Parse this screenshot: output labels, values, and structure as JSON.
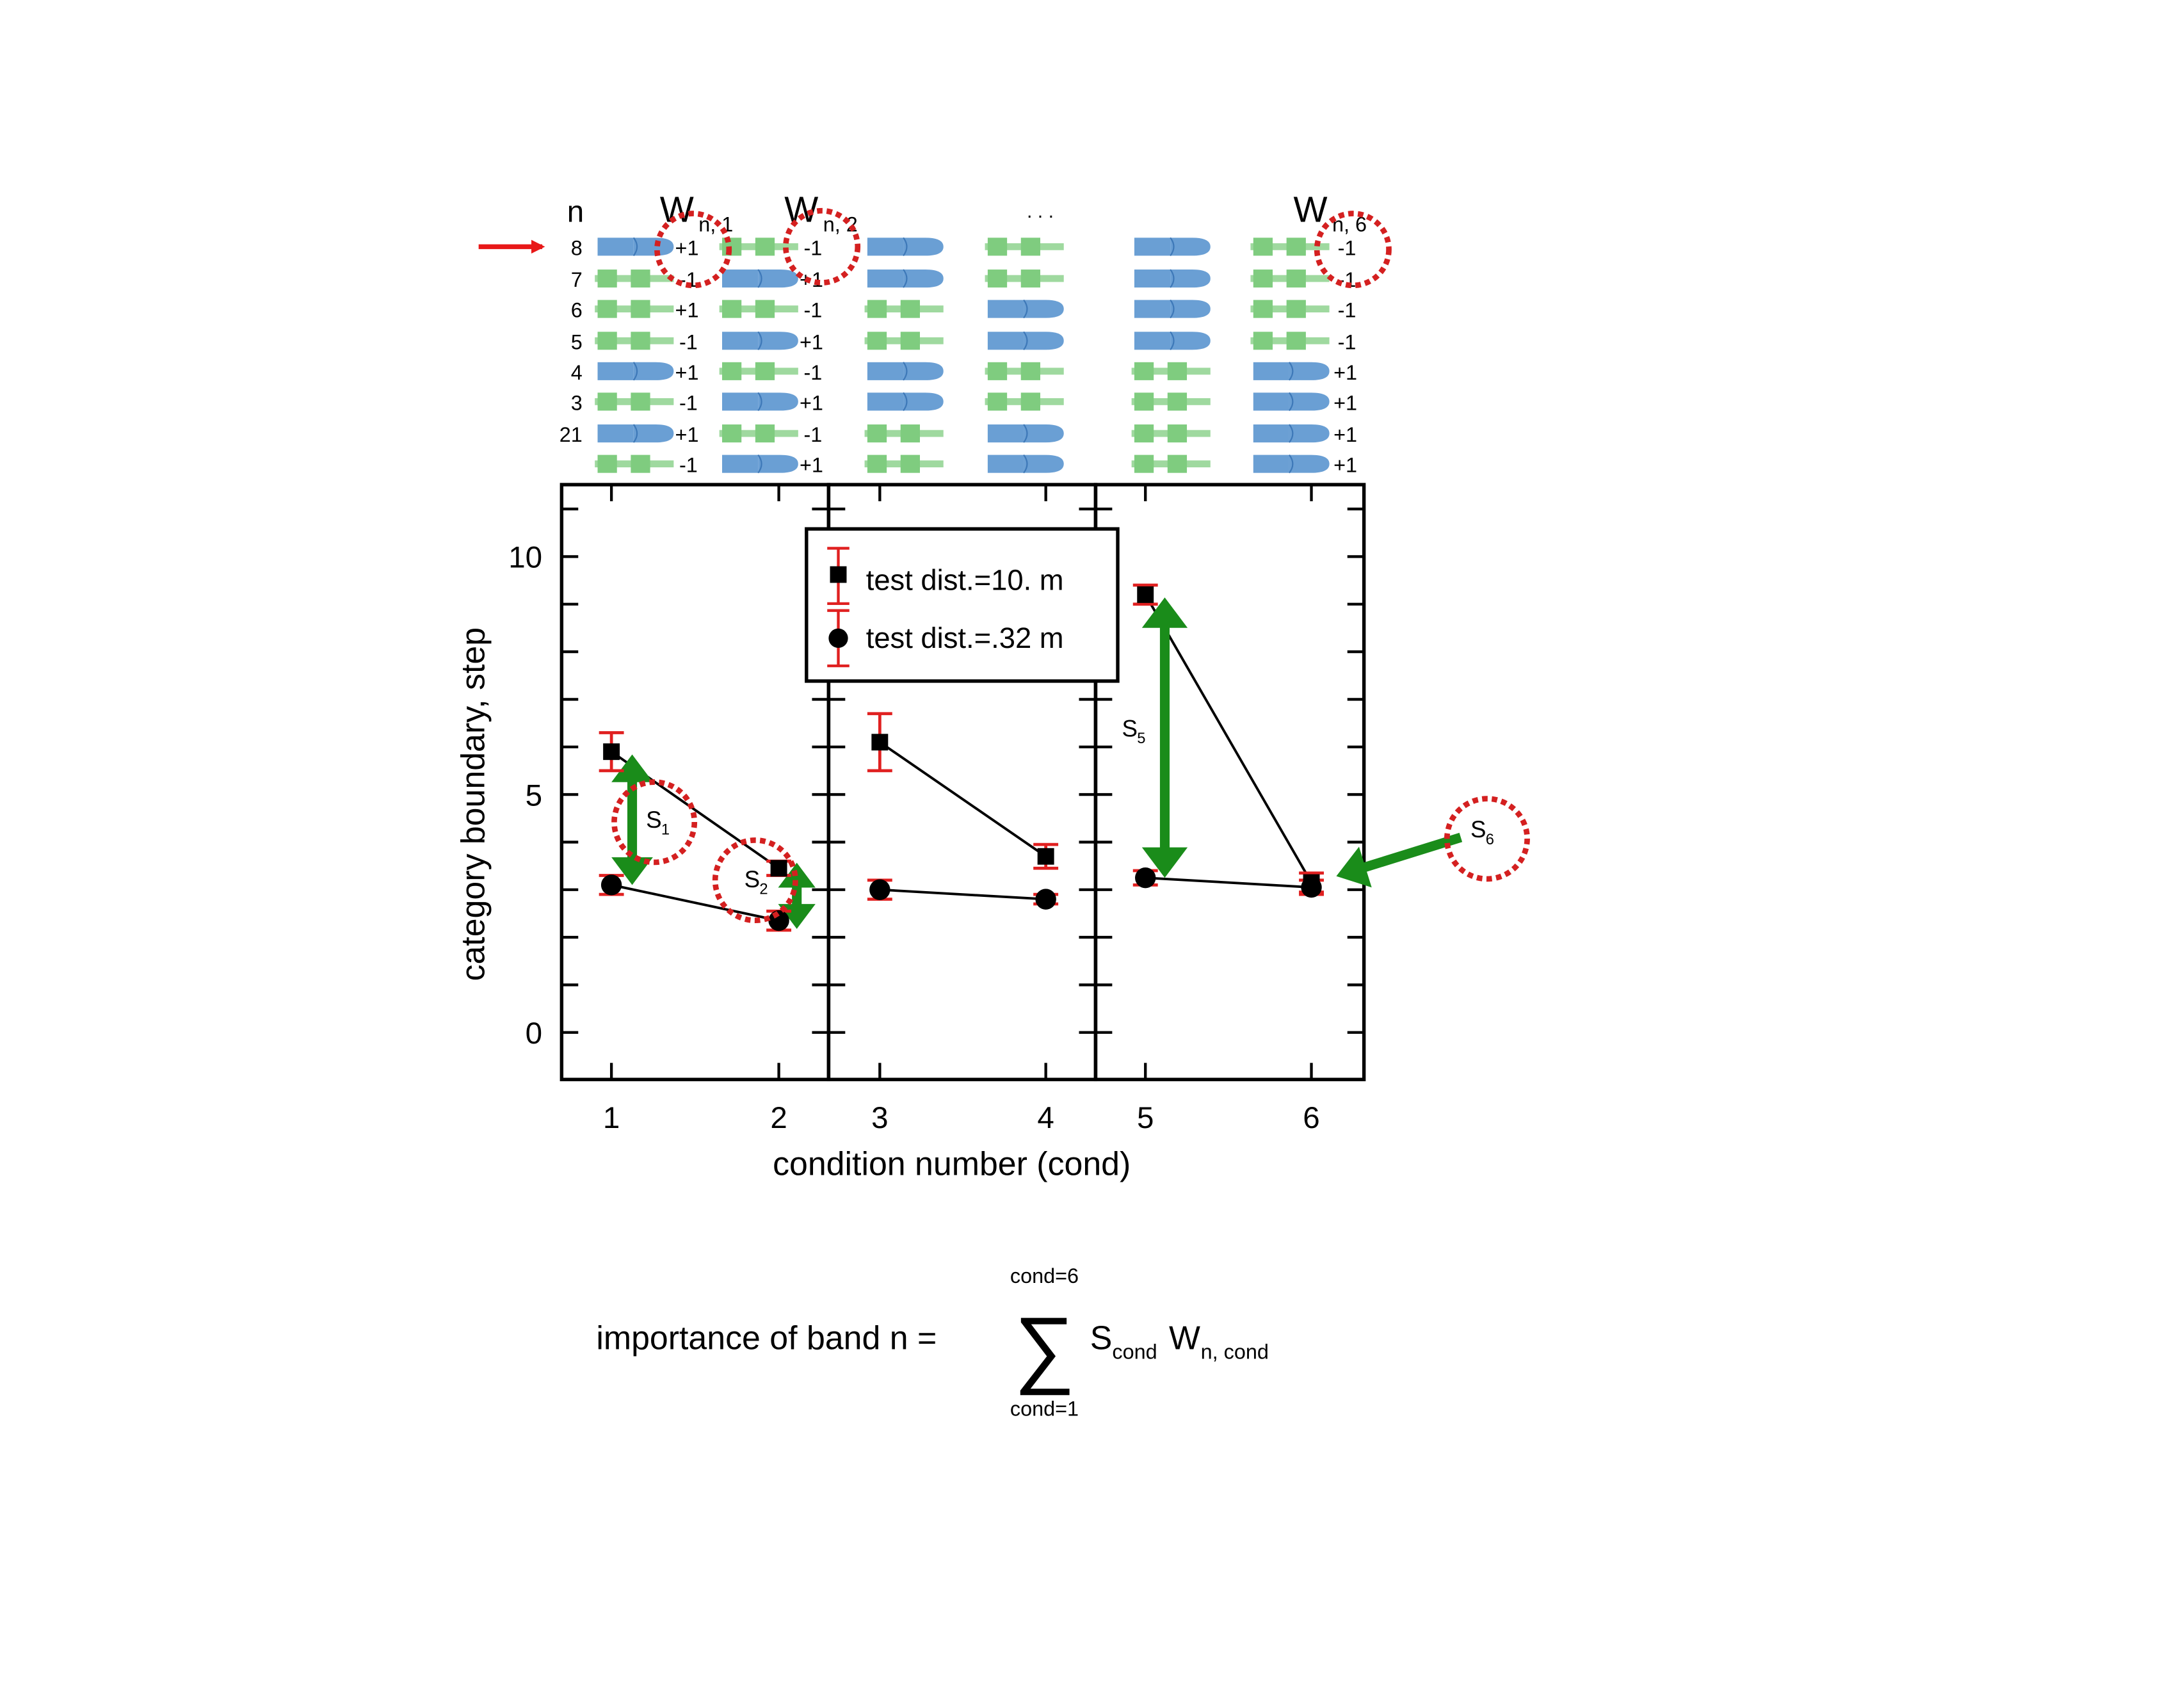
{
  "chart_data": {
    "type": "scatter",
    "title": "",
    "xlabel": "condition number (cond)",
    "ylabel": "category boundary, step",
    "ylim": [
      -1,
      12
    ],
    "ytick_labels": [
      "0",
      "5",
      "10"
    ],
    "yticks": [
      0,
      5,
      10
    ],
    "grid": false,
    "legend": {
      "placement": "top-center",
      "entries": [
        "test dist.=10. m",
        "test dist.=.32 m"
      ]
    },
    "panels": [
      {
        "name": "panel-1",
        "conditions": [
          1,
          2
        ],
        "tick_labels": [
          "1",
          "2"
        ]
      },
      {
        "name": "panel-2",
        "conditions": [
          3,
          4
        ],
        "tick_labels": [
          "3",
          "4"
        ]
      },
      {
        "name": "panel-3",
        "conditions": [
          5,
          6
        ],
        "tick_labels": [
          "5",
          "6"
        ]
      }
    ],
    "series": [
      {
        "name": "test dist.=10. m",
        "marker": "square",
        "x": [
          1,
          2,
          3,
          4,
          5,
          6
        ],
        "values": [
          5.9,
          3.45,
          6.1,
          3.7,
          9.2,
          3.15
        ],
        "error": [
          0.4,
          0.15,
          0.6,
          0.25,
          0.2,
          0.2
        ]
      },
      {
        "name": "test dist.=.32 m",
        "marker": "circle",
        "x": [
          1,
          2,
          3,
          4,
          5,
          6
        ],
        "values": [
          3.1,
          2.35,
          3.0,
          2.8,
          3.25,
          3.05
        ],
        "error": [
          0.2,
          0.2,
          0.2,
          0.1,
          0.15,
          0.15
        ]
      }
    ],
    "annotations": [
      {
        "label": "S",
        "sub": "1",
        "cond": 1,
        "from": 5.9,
        "to": 3.1
      },
      {
        "label": "S",
        "sub": "2",
        "cond": 2,
        "from": 3.45,
        "to": 2.35
      },
      {
        "label": "S",
        "sub": "5",
        "cond": 5,
        "from": 9.2,
        "to": 3.25
      },
      {
        "label": "S",
        "sub": "6",
        "cond": 6,
        "from": 3.1,
        "to": 3.1
      }
    ]
  },
  "band_diagram": {
    "n_label": "n",
    "ellipsis": ". . .",
    "row_labels": [
      "8",
      "7",
      "6",
      "5",
      "4",
      "3",
      "21",
      ""
    ],
    "column_headers": [
      {
        "base": "W",
        "sub": "n, 1"
      },
      {
        "base": "W",
        "sub": "n, 2"
      },
      {
        "base": "W",
        "sub": "n, 6"
      }
    ],
    "columns": [
      {
        "cond": 1,
        "rows": [
          "b",
          "g",
          "g",
          "g",
          "b",
          "g",
          "b",
          "g"
        ],
        "weights": [
          "+1",
          "-1",
          "+1",
          "-1",
          "+1",
          "-1",
          "+1",
          "-1"
        ]
      },
      {
        "cond": 2,
        "rows": [
          "g",
          "b",
          "g",
          "b",
          "g",
          "b",
          "g",
          "b"
        ],
        "weights": [
          "-1",
          "+1",
          "-1",
          "+1",
          "-1",
          "+1",
          "-1",
          "+1"
        ]
      },
      {
        "cond": 3,
        "rows": [
          "b",
          "b",
          "g",
          "g",
          "b",
          "b",
          "g",
          "g"
        ],
        "weights": []
      },
      {
        "cond": 4,
        "rows": [
          "g",
          "g",
          "b",
          "b",
          "g",
          "g",
          "b",
          "b"
        ],
        "weights": []
      },
      {
        "cond": 5,
        "rows": [
          "b",
          "b",
          "b",
          "b",
          "g",
          "g",
          "g",
          "g"
        ],
        "weights": []
      },
      {
        "cond": 6,
        "rows": [
          "g",
          "g",
          "g",
          "g",
          "b",
          "b",
          "b",
          "b"
        ],
        "weights": [
          "-1",
          "-1",
          "-1",
          "-1",
          "+1",
          "+1",
          "+1",
          "+1"
        ]
      }
    ]
  },
  "formula": {
    "prefix": "importance of band n =",
    "upper_limit": "cond=6",
    "lower_limit": "cond=1",
    "sigma": "∑",
    "term1_base": "S",
    "term1_sub": "cond",
    "term2_base": "W",
    "term2_sub": "n, cond"
  },
  "colors": {
    "blue_band": "#6a9fd4",
    "green_band": "#7fcc7f",
    "error_bar": "#e02020",
    "arrow_green": "#1a8c1a",
    "circle_red": "#d42020",
    "pointer_red": "#e81818"
  }
}
